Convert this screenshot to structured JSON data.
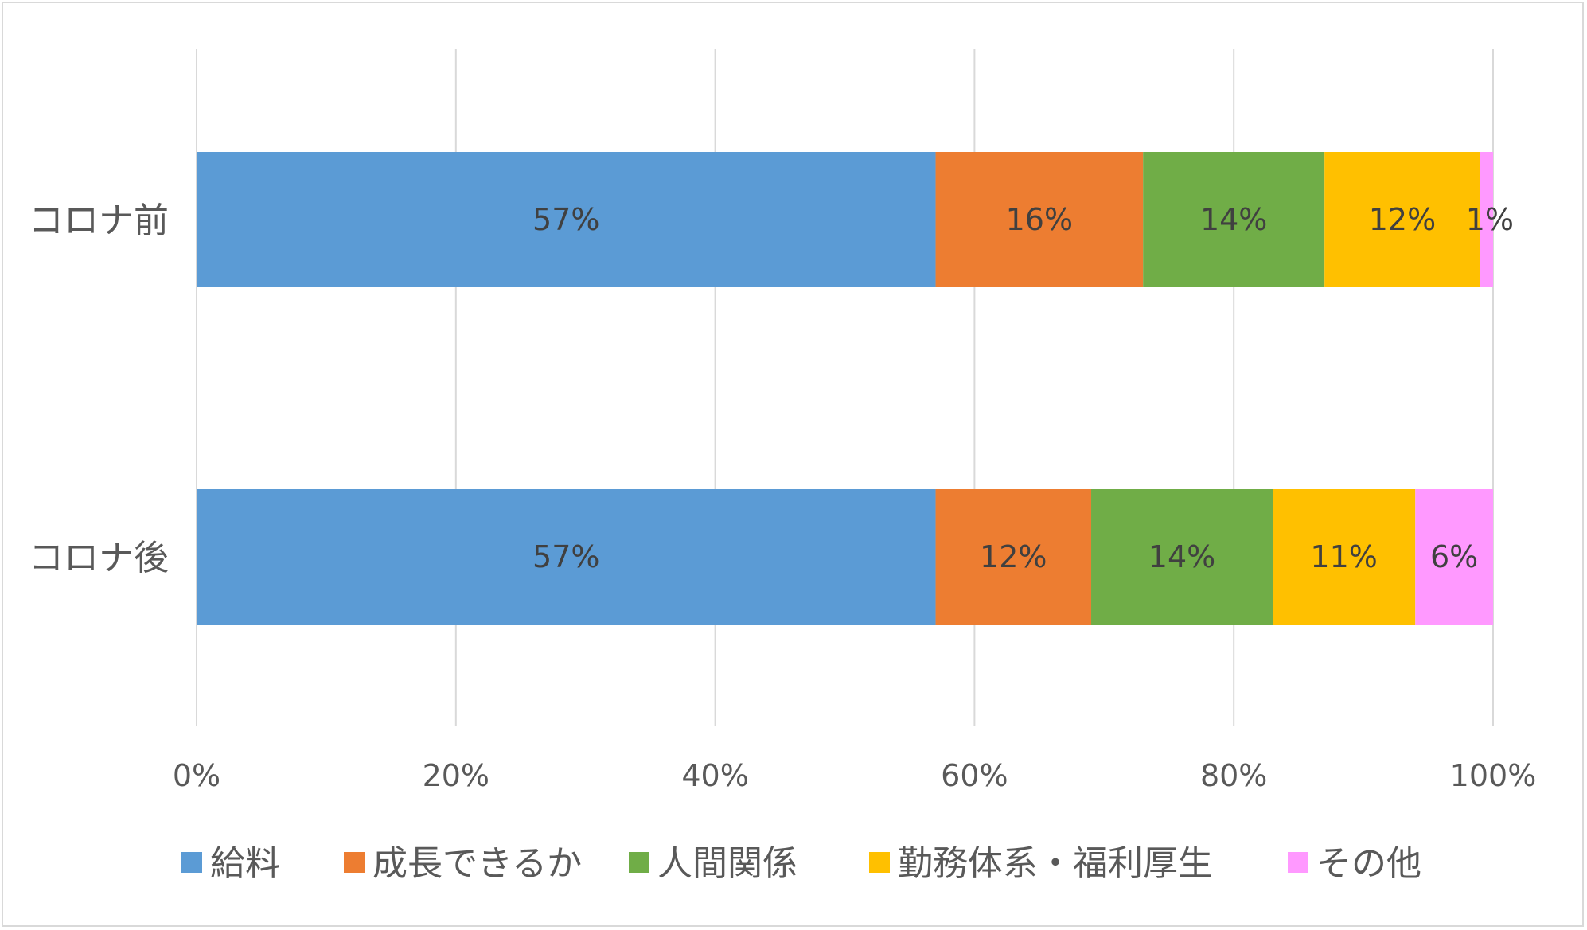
{
  "chart_data": {
    "type": "bar",
    "orientation": "horizontal",
    "stacked": "percent",
    "categories": [
      "コロナ前",
      "コロナ後"
    ],
    "series": [
      {
        "name": "給料",
        "color": "#5b9bd5",
        "values": [
          57,
          57
        ],
        "labels": [
          "57%",
          "57%"
        ]
      },
      {
        "name": "成長できるか",
        "color": "#ed7d31",
        "values": [
          16,
          12
        ],
        "labels": [
          "16%",
          "12%"
        ]
      },
      {
        "name": "人間関係",
        "color": "#70ad47",
        "values": [
          14,
          14
        ],
        "labels": [
          "14%",
          "14%"
        ]
      },
      {
        "name": "勤務体系・福利厚生",
        "color": "#ffc000",
        "values": [
          12,
          11
        ],
        "labels": [
          "12%",
          "11%"
        ]
      },
      {
        "name": "その他",
        "color": "#ff99ff",
        "values": [
          1,
          6
        ],
        "labels": [
          "1%",
          "6%"
        ]
      }
    ],
    "xlim": [
      0,
      100
    ],
    "xticks": [
      "0%",
      "20%",
      "40%",
      "60%",
      "80%",
      "100%"
    ],
    "grid": true,
    "legend_position": "bottom"
  }
}
